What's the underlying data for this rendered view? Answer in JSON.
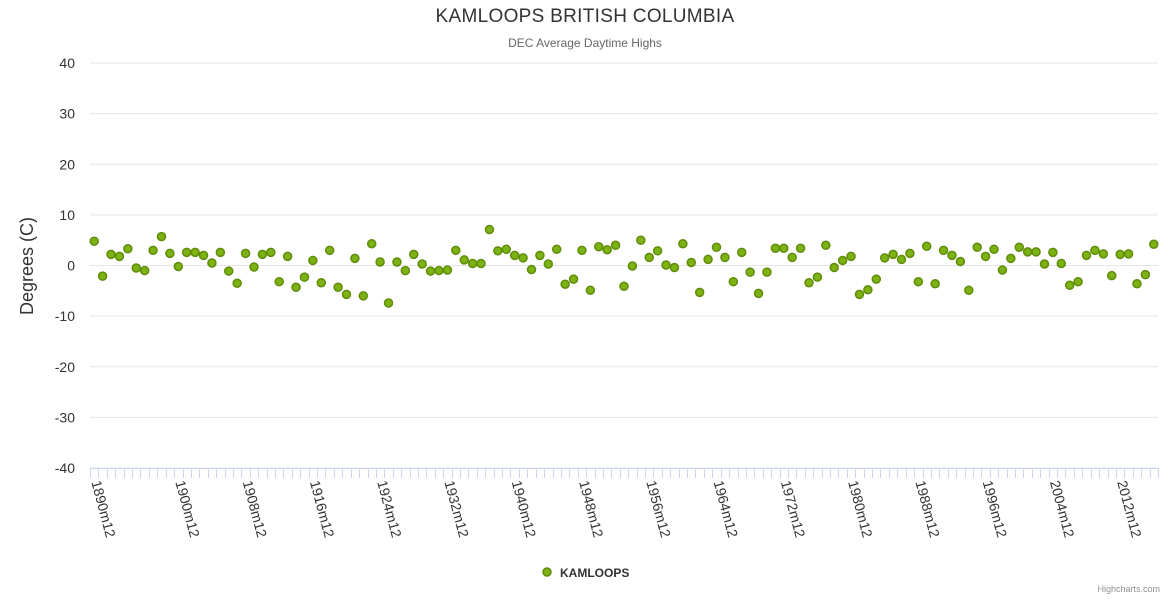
{
  "title": "KAMLOOPS BRITISH COLUMBIA",
  "subtitle": "DEC Average Daytime Highs",
  "credits": "Highcharts.com",
  "chart_data": {
    "type": "scatter",
    "title": "KAMLOOPS BRITISH COLUMBIA",
    "subtitle": "DEC Average Daytime Highs",
    "xlabel": "",
    "ylabel": "Degrees (C)",
    "ylim": [
      -40,
      40
    ],
    "yticks": [
      40,
      30,
      20,
      10,
      0,
      -10,
      -20,
      -30,
      -40
    ],
    "xlim": [
      "1890m12",
      "2016m12"
    ],
    "xtick_labels": [
      "1890m12",
      "1900m12",
      "1908m12",
      "1916m12",
      "1924m12",
      "1932m12",
      "1940m12",
      "1948m12",
      "1956m12",
      "1964m12",
      "1972m12",
      "1980m12",
      "1988m12",
      "1996m12",
      "2004m12",
      "2012m12"
    ],
    "grid": true,
    "legend_position": "bottom-center",
    "colors": {
      "marker_fill": "#7cb212",
      "marker_stroke": "#5f8c0a",
      "grid": "#e6e6e6",
      "axis": "#ccd6eb"
    },
    "series": [
      {
        "name": "KAMLOOPS",
        "points": [
          [
            "1890m12",
            4.8
          ],
          [
            "1891m12",
            -2.1
          ],
          [
            "1892m12",
            2.2
          ],
          [
            "1893m12",
            1.8
          ],
          [
            "1894m12",
            3.3
          ],
          [
            "1895m12",
            -0.5
          ],
          [
            "1896m12",
            -1.0
          ],
          [
            "1897m12",
            3.0
          ],
          [
            "1898m12",
            5.7
          ],
          [
            "1899m12",
            2.4
          ],
          [
            "1900m12",
            -0.2
          ],
          [
            "1901m12",
            2.6
          ],
          [
            "1902m12",
            2.6
          ],
          [
            "1903m12",
            2.0
          ],
          [
            "1904m12",
            0.5
          ],
          [
            "1905m12",
            2.6
          ],
          [
            "1906m12",
            -1.1
          ],
          [
            "1907m12",
            -3.5
          ],
          [
            "1908m12",
            2.4
          ],
          [
            "1909m12",
            -0.3
          ],
          [
            "1910m12",
            2.2
          ],
          [
            "1911m12",
            2.6
          ],
          [
            "1912m12",
            -3.2
          ],
          [
            "1913m12",
            1.8
          ],
          [
            "1914m12",
            -4.3
          ],
          [
            "1915m12",
            -2.3
          ],
          [
            "1916m12",
            1.0
          ],
          [
            "1917m12",
            -3.4
          ],
          [
            "1918m12",
            3.0
          ],
          [
            "1919m12",
            -4.3
          ],
          [
            "1920m12",
            -5.7
          ],
          [
            "1921m12",
            1.4
          ],
          [
            "1922m12",
            -6.0
          ],
          [
            "1923m12",
            4.3
          ],
          [
            "1924m12",
            0.7
          ],
          [
            "1925m12",
            -7.4
          ],
          [
            "1926m12",
            0.7
          ],
          [
            "1927m12",
            -1.0
          ],
          [
            "1928m12",
            2.2
          ],
          [
            "1929m12",
            0.3
          ],
          [
            "1930m12",
            -1.1
          ],
          [
            "1931m12",
            -1.0
          ],
          [
            "1932m12",
            -0.9
          ],
          [
            "1933m12",
            3.0
          ],
          [
            "1934m12",
            1.1
          ],
          [
            "1935m12",
            0.4
          ],
          [
            "1936m12",
            0.4
          ],
          [
            "1937m12",
            7.1
          ],
          [
            "1938m12",
            2.9
          ],
          [
            "1939m12",
            3.2
          ],
          [
            "1940m12",
            2.0
          ],
          [
            "1941m12",
            1.5
          ],
          [
            "1942m12",
            -0.8
          ],
          [
            "1943m12",
            2.0
          ],
          [
            "1944m12",
            0.3
          ],
          [
            "1945m12",
            3.2
          ],
          [
            "1946m12",
            -3.7
          ],
          [
            "1947m12",
            -2.7
          ],
          [
            "1948m12",
            3.0
          ],
          [
            "1949m12",
            -4.9
          ],
          [
            "1950m12",
            3.7
          ],
          [
            "1951m12",
            3.1
          ],
          [
            "1952m12",
            4.0
          ],
          [
            "1953m12",
            -4.1
          ],
          [
            "1954m12",
            -0.1
          ],
          [
            "1955m12",
            5.0
          ],
          [
            "1956m12",
            1.6
          ],
          [
            "1957m12",
            2.9
          ],
          [
            "1958m12",
            0.1
          ],
          [
            "1959m12",
            -0.4
          ],
          [
            "1960m12",
            4.3
          ],
          [
            "1961m12",
            0.6
          ],
          [
            "1962m12",
            -5.3
          ],
          [
            "1963m12",
            1.2
          ],
          [
            "1964m12",
            3.6
          ],
          [
            "1965m12",
            1.6
          ],
          [
            "1966m12",
            -3.2
          ],
          [
            "1967m12",
            2.6
          ],
          [
            "1968m12",
            -1.3
          ],
          [
            "1969m12",
            -5.5
          ],
          [
            "1970m12",
            -1.3
          ],
          [
            "1971m12",
            3.4
          ],
          [
            "1972m12",
            3.4
          ],
          [
            "1973m12",
            1.6
          ],
          [
            "1974m12",
            3.4
          ],
          [
            "1975m12",
            -3.4
          ],
          [
            "1976m12",
            -2.3
          ],
          [
            "1977m12",
            4.0
          ],
          [
            "1978m12",
            -0.4
          ],
          [
            "1979m12",
            1.0
          ],
          [
            "1980m12",
            1.8
          ],
          [
            "1981m12",
            -5.7
          ],
          [
            "1982m12",
            -4.8
          ],
          [
            "1983m12",
            -2.7
          ],
          [
            "1984m12",
            1.5
          ],
          [
            "1985m12",
            2.2
          ],
          [
            "1986m12",
            1.2
          ],
          [
            "1987m12",
            2.4
          ],
          [
            "1988m12",
            -3.2
          ],
          [
            "1989m12",
            3.8
          ],
          [
            "1990m12",
            -3.6
          ],
          [
            "1991m12",
            3.0
          ],
          [
            "1992m12",
            2.0
          ],
          [
            "1993m12",
            0.8
          ],
          [
            "1994m12",
            -4.9
          ],
          [
            "1995m12",
            3.6
          ],
          [
            "1996m12",
            1.8
          ],
          [
            "1997m12",
            3.2
          ],
          [
            "1998m12",
            -0.9
          ],
          [
            "1999m12",
            1.4
          ],
          [
            "2000m12",
            3.6
          ],
          [
            "2001m12",
            2.7
          ],
          [
            "2002m12",
            2.7
          ],
          [
            "2003m12",
            0.3
          ],
          [
            "2004m12",
            2.6
          ],
          [
            "2005m12",
            0.4
          ],
          [
            "2006m12",
            -3.9
          ],
          [
            "2007m12",
            -3.2
          ],
          [
            "2008m12",
            2.0
          ],
          [
            "2009m12",
            3.0
          ],
          [
            "2010m12",
            2.3
          ],
          [
            "2011m12",
            -2.0
          ],
          [
            "2012m12",
            2.2
          ],
          [
            "2013m12",
            2.3
          ],
          [
            "2014m12",
            -3.6
          ],
          [
            "2015m12",
            -1.8
          ],
          [
            "2016m12",
            4.2
          ]
        ]
      }
    ]
  }
}
